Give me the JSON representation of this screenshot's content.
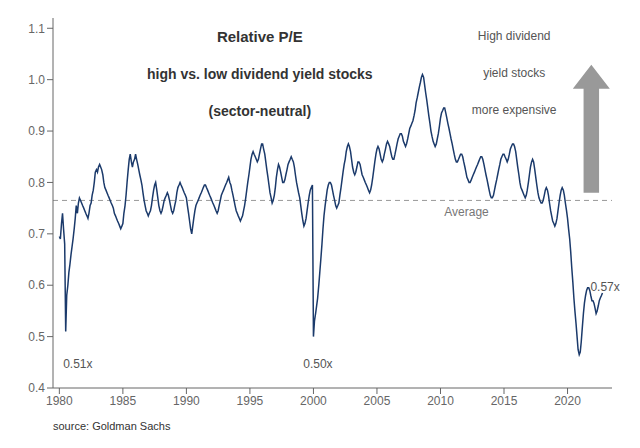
{
  "chart_data": {
    "type": "line",
    "title": "Relative P/E",
    "subtitle": [
      "high vs. low dividend yield stocks",
      "(sector-neutral)"
    ],
    "color": "#1b3a6b",
    "grid": false,
    "xlim": [
      1979.5,
      2023.5
    ],
    "xticks": [
      1980,
      1985,
      1990,
      1995,
      2000,
      2005,
      2010,
      2015,
      2020
    ],
    "ylim": [
      0.4,
      1.12
    ],
    "yticks": [
      0.4,
      0.5,
      0.6,
      0.7,
      0.8,
      0.9,
      {
        "value": 1.0,
        "label": "1.0"
      },
      1.1
    ],
    "average": {
      "value": 0.765,
      "label": "Average",
      "label_x": 2010.3
    },
    "annotations": [
      {
        "text": "0.51x",
        "x": 1980.3,
        "y": 0.435
      },
      {
        "text": "0.50x",
        "x": 1999.2,
        "y": 0.435
      },
      {
        "text": "0.57x",
        "x": 2021.8,
        "y": 0.585
      }
    ],
    "callout": [
      "High dividend",
      "yield stocks",
      "more expensive"
    ],
    "source": "source: Goldman Sachs",
    "x": [
      1980.0,
      1980.08,
      1980.17,
      1980.25,
      1980.33,
      1980.42,
      1980.5,
      1980.58,
      1980.67,
      1980.75,
      1980.83,
      1980.92,
      1981.0,
      1981.08,
      1981.17,
      1981.25,
      1981.33,
      1981.42,
      1981.5,
      1981.58,
      1981.67,
      1981.75,
      1981.83,
      1981.92,
      1982.0,
      1982.08,
      1982.17,
      1982.25,
      1982.33,
      1982.42,
      1982.5,
      1982.58,
      1982.67,
      1982.75,
      1982.83,
      1982.92,
      1983.0,
      1983.08,
      1983.17,
      1983.25,
      1983.33,
      1983.42,
      1983.5,
      1983.58,
      1983.67,
      1983.75,
      1983.83,
      1983.92,
      1984.0,
      1984.08,
      1984.17,
      1984.25,
      1984.33,
      1984.42,
      1984.5,
      1984.58,
      1984.67,
      1984.75,
      1984.83,
      1984.92,
      1985.0,
      1985.08,
      1985.17,
      1985.25,
      1985.33,
      1985.42,
      1985.5,
      1985.58,
      1985.67,
      1985.75,
      1985.83,
      1985.92,
      1986.0,
      1986.08,
      1986.17,
      1986.25,
      1986.33,
      1986.42,
      1986.5,
      1986.58,
      1986.67,
      1986.75,
      1986.83,
      1986.92,
      1987.0,
      1987.08,
      1987.17,
      1987.25,
      1987.33,
      1987.42,
      1987.5,
      1987.58,
      1987.67,
      1987.75,
      1987.83,
      1987.92,
      1988.0,
      1988.08,
      1988.17,
      1988.25,
      1988.33,
      1988.42,
      1988.5,
      1988.58,
      1988.67,
      1988.75,
      1988.83,
      1988.92,
      1989.0,
      1989.08,
      1989.17,
      1989.25,
      1989.33,
      1989.42,
      1989.5,
      1989.58,
      1989.67,
      1989.75,
      1989.83,
      1989.92,
      1990.0,
      1990.08,
      1990.17,
      1990.25,
      1990.33,
      1990.42,
      1990.5,
      1990.58,
      1990.67,
      1990.75,
      1990.83,
      1990.92,
      1991.0,
      1991.08,
      1991.17,
      1991.25,
      1991.33,
      1991.42,
      1991.5,
      1991.58,
      1991.67,
      1991.75,
      1991.83,
      1991.92,
      1992.0,
      1992.08,
      1992.17,
      1992.25,
      1992.33,
      1992.42,
      1992.5,
      1992.58,
      1992.67,
      1992.75,
      1992.83,
      1992.92,
      1993.0,
      1993.08,
      1993.17,
      1993.25,
      1993.33,
      1993.42,
      1993.5,
      1993.58,
      1993.67,
      1993.75,
      1993.83,
      1993.92,
      1994.0,
      1994.08,
      1994.17,
      1994.25,
      1994.33,
      1994.42,
      1994.5,
      1994.58,
      1994.67,
      1994.75,
      1994.83,
      1994.92,
      1995.0,
      1995.08,
      1995.17,
      1995.25,
      1995.33,
      1995.42,
      1995.5,
      1995.58,
      1995.67,
      1995.75,
      1995.83,
      1995.92,
      1996.0,
      1996.08,
      1996.17,
      1996.25,
      1996.33,
      1996.42,
      1996.5,
      1996.58,
      1996.67,
      1996.75,
      1996.83,
      1996.92,
      1997.0,
      1997.08,
      1997.17,
      1997.25,
      1997.33,
      1997.42,
      1997.5,
      1997.58,
      1997.67,
      1997.75,
      1997.83,
      1997.92,
      1998.0,
      1998.08,
      1998.17,
      1998.25,
      1998.33,
      1998.42,
      1998.5,
      1998.58,
      1998.67,
      1998.75,
      1998.83,
      1998.92,
      1999.0,
      1999.08,
      1999.17,
      1999.25,
      1999.33,
      1999.42,
      1999.5,
      1999.58,
      1999.67,
      1999.75,
      1999.83,
      1999.92,
      2000.0,
      2000.08,
      2000.17,
      2000.25,
      2000.33,
      2000.42,
      2000.5,
      2000.58,
      2000.67,
      2000.75,
      2000.83,
      2000.92,
      2001.0,
      2001.08,
      2001.17,
      2001.25,
      2001.33,
      2001.42,
      2001.5,
      2001.58,
      2001.67,
      2001.75,
      2001.83,
      2001.92,
      2002.0,
      2002.08,
      2002.17,
      2002.25,
      2002.33,
      2002.42,
      2002.5,
      2002.58,
      2002.67,
      2002.75,
      2002.83,
      2002.92,
      2003.0,
      2003.08,
      2003.17,
      2003.25,
      2003.33,
      2003.42,
      2003.5,
      2003.58,
      2003.67,
      2003.75,
      2003.83,
      2003.92,
      2004.0,
      2004.08,
      2004.17,
      2004.25,
      2004.33,
      2004.42,
      2004.5,
      2004.58,
      2004.67,
      2004.75,
      2004.83,
      2004.92,
      2005.0,
      2005.08,
      2005.17,
      2005.25,
      2005.33,
      2005.42,
      2005.5,
      2005.58,
      2005.67,
      2005.75,
      2005.83,
      2005.92,
      2006.0,
      2006.08,
      2006.17,
      2006.25,
      2006.33,
      2006.42,
      2006.5,
      2006.58,
      2006.67,
      2006.75,
      2006.83,
      2006.92,
      2007.0,
      2007.08,
      2007.17,
      2007.25,
      2007.33,
      2007.42,
      2007.5,
      2007.58,
      2007.67,
      2007.75,
      2007.83,
      2007.92,
      2008.0,
      2008.08,
      2008.17,
      2008.25,
      2008.33,
      2008.42,
      2008.5,
      2008.58,
      2008.67,
      2008.75,
      2008.83,
      2008.92,
      2009.0,
      2009.08,
      2009.17,
      2009.25,
      2009.33,
      2009.42,
      2009.5,
      2009.58,
      2009.67,
      2009.75,
      2009.83,
      2009.92,
      2010.0,
      2010.08,
      2010.17,
      2010.25,
      2010.33,
      2010.42,
      2010.5,
      2010.58,
      2010.67,
      2010.75,
      2010.83,
      2010.92,
      2011.0,
      2011.08,
      2011.17,
      2011.25,
      2011.33,
      2011.42,
      2011.5,
      2011.58,
      2011.67,
      2011.75,
      2011.83,
      2011.92,
      2012.0,
      2012.08,
      2012.17,
      2012.25,
      2012.33,
      2012.42,
      2012.5,
      2012.58,
      2012.67,
      2012.75,
      2012.83,
      2012.92,
      2013.0,
      2013.08,
      2013.17,
      2013.25,
      2013.33,
      2013.42,
      2013.5,
      2013.58,
      2013.67,
      2013.75,
      2013.83,
      2013.92,
      2014.0,
      2014.08,
      2014.17,
      2014.25,
      2014.33,
      2014.42,
      2014.5,
      2014.58,
      2014.67,
      2014.75,
      2014.83,
      2014.92,
      2015.0,
      2015.08,
      2015.17,
      2015.25,
      2015.33,
      2015.42,
      2015.5,
      2015.58,
      2015.67,
      2015.75,
      2015.83,
      2015.92,
      2016.0,
      2016.08,
      2016.17,
      2016.25,
      2016.33,
      2016.42,
      2016.5,
      2016.58,
      2016.67,
      2016.75,
      2016.83,
      2016.92,
      2017.0,
      2017.08,
      2017.17,
      2017.25,
      2017.33,
      2017.42,
      2017.5,
      2017.58,
      2017.67,
      2017.75,
      2017.83,
      2017.92,
      2018.0,
      2018.08,
      2018.17,
      2018.25,
      2018.33,
      2018.42,
      2018.5,
      2018.58,
      2018.67,
      2018.75,
      2018.83,
      2018.92,
      2019.0,
      2019.08,
      2019.17,
      2019.25,
      2019.33,
      2019.42,
      2019.5,
      2019.58,
      2019.67,
      2019.75,
      2019.83,
      2019.92,
      2020.0,
      2020.08,
      2020.17,
      2020.25,
      2020.33,
      2020.42,
      2020.5,
      2020.58,
      2020.67,
      2020.75,
      2020.83,
      2020.92,
      2021.0,
      2021.08,
      2021.17,
      2021.25,
      2021.33,
      2021.42,
      2021.5,
      2021.58,
      2021.67,
      2021.75,
      2021.83,
      2021.92,
      2022.0,
      2022.08,
      2022.17,
      2022.25,
      2022.33,
      2022.42,
      2022.5,
      2022.58,
      2022.67,
      2022.75
    ],
    "values": [
      0.695,
      0.69,
      0.72,
      0.74,
      0.71,
      0.68,
      0.51,
      0.58,
      0.6,
      0.625,
      0.64,
      0.66,
      0.675,
      0.69,
      0.71,
      0.73,
      0.755,
      0.74,
      0.76,
      0.77,
      0.765,
      0.76,
      0.755,
      0.75,
      0.745,
      0.74,
      0.735,
      0.73,
      0.74,
      0.755,
      0.76,
      0.775,
      0.785,
      0.8,
      0.82,
      0.825,
      0.82,
      0.83,
      0.835,
      0.83,
      0.825,
      0.815,
      0.8,
      0.79,
      0.785,
      0.78,
      0.775,
      0.77,
      0.765,
      0.76,
      0.755,
      0.75,
      0.74,
      0.735,
      0.73,
      0.725,
      0.72,
      0.715,
      0.71,
      0.715,
      0.72,
      0.74,
      0.755,
      0.775,
      0.8,
      0.825,
      0.845,
      0.855,
      0.84,
      0.83,
      0.84,
      0.845,
      0.855,
      0.845,
      0.835,
      0.825,
      0.815,
      0.805,
      0.795,
      0.78,
      0.765,
      0.755,
      0.745,
      0.74,
      0.735,
      0.74,
      0.745,
      0.755,
      0.77,
      0.785,
      0.795,
      0.8,
      0.785,
      0.77,
      0.755,
      0.745,
      0.74,
      0.745,
      0.755,
      0.765,
      0.77,
      0.775,
      0.78,
      0.775,
      0.765,
      0.755,
      0.745,
      0.74,
      0.745,
      0.755,
      0.765,
      0.78,
      0.79,
      0.795,
      0.8,
      0.795,
      0.79,
      0.785,
      0.78,
      0.775,
      0.77,
      0.755,
      0.74,
      0.725,
      0.71,
      0.7,
      0.715,
      0.73,
      0.745,
      0.755,
      0.76,
      0.765,
      0.77,
      0.775,
      0.78,
      0.785,
      0.79,
      0.795,
      0.795,
      0.79,
      0.785,
      0.78,
      0.775,
      0.77,
      0.765,
      0.76,
      0.755,
      0.75,
      0.745,
      0.74,
      0.745,
      0.755,
      0.765,
      0.775,
      0.78,
      0.785,
      0.79,
      0.795,
      0.8,
      0.805,
      0.81,
      0.8,
      0.795,
      0.785,
      0.775,
      0.765,
      0.755,
      0.745,
      0.74,
      0.735,
      0.73,
      0.725,
      0.73,
      0.735,
      0.745,
      0.755,
      0.77,
      0.785,
      0.8,
      0.815,
      0.83,
      0.845,
      0.855,
      0.86,
      0.855,
      0.85,
      0.845,
      0.84,
      0.845,
      0.855,
      0.865,
      0.875,
      0.875,
      0.865,
      0.855,
      0.84,
      0.825,
      0.81,
      0.795,
      0.78,
      0.77,
      0.76,
      0.765,
      0.775,
      0.79,
      0.81,
      0.825,
      0.835,
      0.83,
      0.82,
      0.81,
      0.8,
      0.8,
      0.805,
      0.815,
      0.825,
      0.835,
      0.84,
      0.845,
      0.85,
      0.845,
      0.84,
      0.83,
      0.815,
      0.8,
      0.79,
      0.78,
      0.77,
      0.755,
      0.74,
      0.725,
      0.715,
      0.72,
      0.73,
      0.745,
      0.76,
      0.775,
      0.785,
      0.79,
      0.795,
      0.5,
      0.53,
      0.545,
      0.56,
      0.575,
      0.6,
      0.625,
      0.65,
      0.68,
      0.71,
      0.735,
      0.755,
      0.77,
      0.785,
      0.795,
      0.8,
      0.8,
      0.795,
      0.785,
      0.775,
      0.765,
      0.755,
      0.75,
      0.755,
      0.76,
      0.775,
      0.79,
      0.805,
      0.82,
      0.835,
      0.845,
      0.86,
      0.87,
      0.875,
      0.87,
      0.86,
      0.845,
      0.83,
      0.82,
      0.815,
      0.82,
      0.83,
      0.84,
      0.84,
      0.835,
      0.825,
      0.815,
      0.81,
      0.805,
      0.8,
      0.795,
      0.79,
      0.785,
      0.78,
      0.785,
      0.795,
      0.81,
      0.825,
      0.84,
      0.855,
      0.865,
      0.87,
      0.865,
      0.855,
      0.845,
      0.84,
      0.845,
      0.855,
      0.865,
      0.875,
      0.88,
      0.875,
      0.87,
      0.86,
      0.85,
      0.845,
      0.845,
      0.855,
      0.865,
      0.875,
      0.885,
      0.89,
      0.895,
      0.895,
      0.89,
      0.88,
      0.875,
      0.87,
      0.875,
      0.885,
      0.895,
      0.905,
      0.91,
      0.915,
      0.92,
      0.93,
      0.94,
      0.955,
      0.965,
      0.975,
      0.985,
      0.995,
      1.005,
      1.01,
      1.005,
      0.99,
      0.975,
      0.96,
      0.945,
      0.93,
      0.915,
      0.9,
      0.89,
      0.88,
      0.875,
      0.87,
      0.875,
      0.885,
      0.895,
      0.91,
      0.925,
      0.935,
      0.94,
      0.945,
      0.945,
      0.935,
      0.925,
      0.915,
      0.905,
      0.895,
      0.885,
      0.875,
      0.865,
      0.855,
      0.845,
      0.84,
      0.84,
      0.845,
      0.85,
      0.855,
      0.855,
      0.85,
      0.84,
      0.83,
      0.82,
      0.81,
      0.805,
      0.8,
      0.8,
      0.805,
      0.81,
      0.815,
      0.82,
      0.825,
      0.83,
      0.835,
      0.84,
      0.845,
      0.85,
      0.85,
      0.845,
      0.835,
      0.825,
      0.815,
      0.805,
      0.795,
      0.785,
      0.775,
      0.77,
      0.77,
      0.775,
      0.785,
      0.795,
      0.805,
      0.815,
      0.825,
      0.835,
      0.845,
      0.85,
      0.855,
      0.855,
      0.85,
      0.845,
      0.84,
      0.845,
      0.855,
      0.865,
      0.87,
      0.875,
      0.875,
      0.87,
      0.86,
      0.845,
      0.83,
      0.815,
      0.8,
      0.79,
      0.785,
      0.78,
      0.775,
      0.77,
      0.775,
      0.785,
      0.8,
      0.815,
      0.83,
      0.84,
      0.845,
      0.84,
      0.825,
      0.81,
      0.795,
      0.78,
      0.77,
      0.765,
      0.76,
      0.76,
      0.765,
      0.775,
      0.785,
      0.79,
      0.785,
      0.775,
      0.76,
      0.745,
      0.735,
      0.725,
      0.72,
      0.715,
      0.72,
      0.73,
      0.745,
      0.76,
      0.775,
      0.785,
      0.79,
      0.785,
      0.775,
      0.76,
      0.745,
      0.73,
      0.71,
      0.69,
      0.665,
      0.635,
      0.605,
      0.575,
      0.55,
      0.525,
      0.5,
      0.475,
      0.465,
      0.47,
      0.49,
      0.52,
      0.545,
      0.565,
      0.58,
      0.59,
      0.595,
      0.595,
      0.59,
      0.58,
      0.57,
      0.57,
      0.565,
      0.555,
      0.545,
      0.55,
      0.56,
      0.57,
      0.575,
      0.58,
      0.585
    ]
  }
}
